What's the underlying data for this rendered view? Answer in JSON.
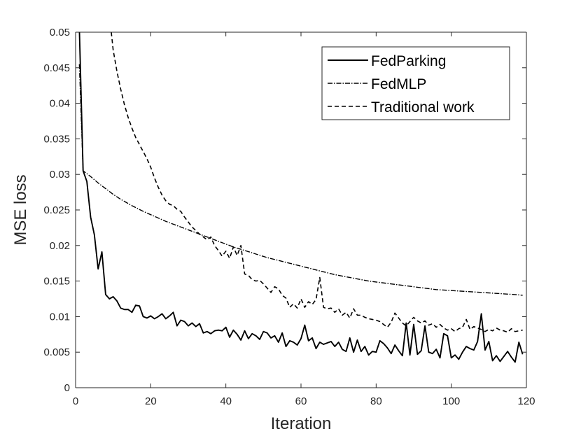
{
  "chart_data": {
    "type": "line",
    "xlabel": "Iteration",
    "ylabel": "MSE loss",
    "xlim": [
      0,
      120
    ],
    "ylim": [
      0,
      0.05
    ],
    "xticks": [
      "0",
      "20",
      "40",
      "60",
      "80",
      "100",
      "120"
    ],
    "yticks": [
      "0",
      "0.005",
      "0.01",
      "0.015",
      "0.02",
      "0.025",
      "0.03",
      "0.035",
      "0.04",
      "0.045",
      "0.05"
    ],
    "grid": false,
    "legend_position": "top-right",
    "series": [
      {
        "name": "FedParking",
        "style": "solid",
        "color": "#000000",
        "x": [
          1,
          2,
          3,
          4,
          5,
          6,
          7,
          8,
          9,
          10,
          11,
          12,
          13,
          14,
          15,
          16,
          17,
          18,
          19,
          20,
          21,
          22,
          23,
          24,
          25,
          26,
          27,
          28,
          29,
          30,
          31,
          32,
          33,
          34,
          35,
          36,
          37,
          38,
          39,
          40,
          41,
          42,
          43,
          44,
          45,
          46,
          47,
          48,
          49,
          50,
          51,
          52,
          53,
          54,
          55,
          56,
          57,
          58,
          59,
          60,
          61,
          62,
          63,
          64,
          65,
          66,
          67,
          68,
          69,
          70,
          71,
          72,
          73,
          74,
          75,
          76,
          77,
          78,
          79,
          80,
          81,
          82,
          83,
          84,
          85,
          86,
          87,
          88,
          89,
          90,
          91,
          92,
          93,
          94,
          95,
          96,
          97,
          98,
          99,
          100,
          101,
          102,
          103,
          104,
          105,
          106,
          107,
          108,
          109,
          110,
          111,
          112,
          113,
          114,
          115,
          116,
          117,
          118,
          119
        ],
        "values": [
          0.0505,
          0.0305,
          0.029,
          0.024,
          0.0215,
          0.0167,
          0.0191,
          0.0131,
          0.0125,
          0.0128,
          0.0122,
          0.0112,
          0.011,
          0.011,
          0.0106,
          0.0116,
          0.0115,
          0.01,
          0.0098,
          0.0101,
          0.0097,
          0.01,
          0.0104,
          0.0097,
          0.0101,
          0.0106,
          0.0087,
          0.0095,
          0.0093,
          0.0087,
          0.0091,
          0.0086,
          0.009,
          0.0077,
          0.0079,
          0.0076,
          0.008,
          0.0081,
          0.008,
          0.0085,
          0.0071,
          0.0081,
          0.0075,
          0.0067,
          0.008,
          0.0069,
          0.0076,
          0.0073,
          0.0068,
          0.0079,
          0.0077,
          0.007,
          0.0073,
          0.0064,
          0.0077,
          0.0058,
          0.0066,
          0.0064,
          0.006,
          0.0069,
          0.0088,
          0.0066,
          0.007,
          0.0055,
          0.0064,
          0.0061,
          0.0063,
          0.0065,
          0.0058,
          0.0064,
          0.0054,
          0.0051,
          0.007,
          0.005,
          0.0067,
          0.0051,
          0.0058,
          0.0046,
          0.0051,
          0.005,
          0.0066,
          0.0062,
          0.0056,
          0.0048,
          0.006,
          0.0052,
          0.0045,
          0.0091,
          0.0046,
          0.0089,
          0.0047,
          0.0052,
          0.0087,
          0.005,
          0.0048,
          0.0054,
          0.0042,
          0.0076,
          0.0073,
          0.0042,
          0.0046,
          0.004,
          0.005,
          0.0058,
          0.0055,
          0.0053,
          0.0065,
          0.0104,
          0.0053,
          0.0065,
          0.0038,
          0.0045,
          0.0037,
          0.0044,
          0.0051,
          0.0043,
          0.0036,
          0.0064,
          0.0047
        ]
      },
      {
        "name": "FedMLP",
        "style": "dashdot",
        "color": "#000000",
        "x": [
          1,
          2,
          4,
          6,
          8,
          10,
          12,
          15,
          18,
          21,
          24,
          27,
          30,
          33,
          36,
          39,
          42,
          45,
          48,
          51,
          54,
          57,
          60,
          63,
          66,
          69,
          72,
          75,
          78,
          81,
          84,
          87,
          90,
          93,
          96,
          99,
          102,
          105,
          108,
          111,
          114,
          117,
          119
        ],
        "values": [
          0.0455,
          0.0305,
          0.0297,
          0.0288,
          0.028,
          0.0272,
          0.0265,
          0.0256,
          0.0248,
          0.0241,
          0.0234,
          0.0228,
          0.0222,
          0.0216,
          0.021,
          0.0204,
          0.0198,
          0.0193,
          0.0188,
          0.0183,
          0.0179,
          0.0175,
          0.0171,
          0.0167,
          0.0163,
          0.0159,
          0.0156,
          0.0153,
          0.015,
          0.0148,
          0.0146,
          0.0144,
          0.0142,
          0.014,
          0.0138,
          0.0137,
          0.0136,
          0.0135,
          0.0134,
          0.0133,
          0.0132,
          0.0131,
          0.013
        ]
      },
      {
        "name": "Traditional work",
        "style": "dashed",
        "color": "#000000",
        "x": [
          9.5,
          10,
          11,
          12,
          13,
          14,
          15,
          16,
          17,
          18,
          19,
          20,
          21,
          22,
          23,
          24,
          25,
          26,
          27,
          28,
          29,
          30,
          31,
          32,
          33,
          34,
          35,
          36,
          37,
          38,
          39,
          40,
          41,
          42,
          43,
          44,
          45,
          46,
          47,
          48,
          49,
          50,
          51,
          52,
          53,
          54,
          55,
          56,
          57,
          58,
          59,
          60,
          61,
          62,
          63,
          64,
          65,
          66,
          67,
          68,
          69,
          70,
          71,
          72,
          73,
          74,
          75,
          76,
          77,
          78,
          79,
          80,
          81,
          82,
          83,
          84,
          85,
          86,
          87,
          88,
          89,
          90,
          91,
          92,
          93,
          94,
          95,
          96,
          97,
          98,
          99,
          100,
          101,
          102,
          103,
          104,
          105,
          106,
          107,
          108,
          109,
          110,
          111,
          112,
          113,
          114,
          115,
          116,
          117,
          118,
          119
        ],
        "values": [
          0.05,
          0.0475,
          0.0445,
          0.042,
          0.0398,
          0.038,
          0.0365,
          0.0352,
          0.0342,
          0.0332,
          0.0322,
          0.031,
          0.0295,
          0.0282,
          0.0271,
          0.0263,
          0.0258,
          0.0256,
          0.0251,
          0.0248,
          0.024,
          0.0233,
          0.0226,
          0.0221,
          0.0216,
          0.0212,
          0.0208,
          0.0212,
          0.02,
          0.0193,
          0.0185,
          0.0192,
          0.0182,
          0.0198,
          0.0186,
          0.02,
          0.016,
          0.0158,
          0.0152,
          0.015,
          0.0151,
          0.0146,
          0.014,
          0.0134,
          0.0142,
          0.0139,
          0.013,
          0.0126,
          0.0113,
          0.0118,
          0.0112,
          0.0125,
          0.0113,
          0.0121,
          0.0117,
          0.0124,
          0.0155,
          0.0113,
          0.0111,
          0.0112,
          0.0106,
          0.0111,
          0.0102,
          0.0106,
          0.0098,
          0.0111,
          0.0102,
          0.0102,
          0.0099,
          0.0097,
          0.0096,
          0.0095,
          0.0093,
          0.0089,
          0.0085,
          0.0092,
          0.0105,
          0.0098,
          0.0091,
          0.0087,
          0.0093,
          0.0099,
          0.0094,
          0.0091,
          0.0094,
          0.0088,
          0.009,
          0.0085,
          0.0089,
          0.0084,
          0.0081,
          0.0083,
          0.0079,
          0.0083,
          0.0085,
          0.0096,
          0.0082,
          0.0086,
          0.0084,
          0.0082,
          0.0079,
          0.0082,
          0.008,
          0.0084,
          0.0081,
          0.008,
          0.0078,
          0.0083,
          0.0079,
          0.008,
          0.0081
        ]
      }
    ]
  }
}
